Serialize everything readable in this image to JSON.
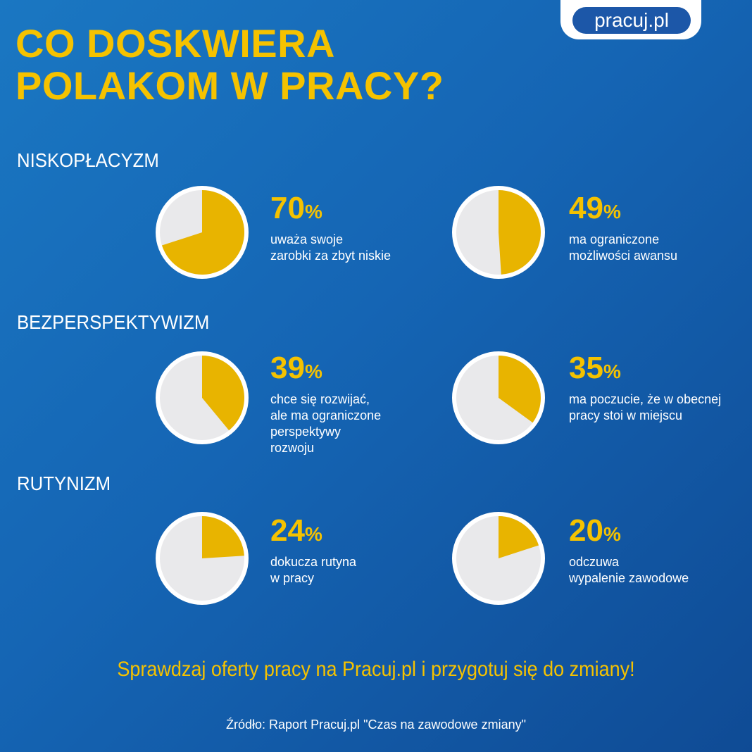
{
  "logo": {
    "text": "pracuj.pl"
  },
  "title": {
    "line1": "CO DOSKWIERA",
    "line2": "POLAKOM W PRACY?"
  },
  "sections": [
    {
      "label": "NISKOPŁACYZM"
    },
    {
      "label": "BEZPERSPEKTYWIZM"
    },
    {
      "label": "RUTYNIZM"
    }
  ],
  "stats": [
    {
      "value": "70",
      "sign": "%",
      "desc": "uważa swoje\nzarobki za zbyt niskie"
    },
    {
      "value": "49",
      "sign": "%",
      "desc": "ma ograniczone\nmożliwości awansu"
    },
    {
      "value": "39",
      "sign": "%",
      "desc": "chce się rozwijać,\nale ma ograniczone\nperspektywy\nrozwoju"
    },
    {
      "value": "35",
      "sign": "%",
      "desc": "ma poczucie, że w obecnej\npracy stoi w miejscu"
    },
    {
      "value": "24",
      "sign": "%",
      "desc": "dokucza rutyna\nw pracy"
    },
    {
      "value": "20",
      "sign": "%",
      "desc": "odczuwa\nwypalenie zawodowe"
    }
  ],
  "cta": "Sprawdzaj oferty pracy na Pracuj.pl i przygotuj się do zmiany!",
  "source": "Źródło: Raport Pracuj.pl \"Czas na zawodowe zmiany\"",
  "colors": {
    "accent": "#f5c200",
    "pie_fill": "#e8b400",
    "pie_rest": "#e9e9eb",
    "pie_border": "#ffffff"
  },
  "chart_data": {
    "type": "pie",
    "charts": [
      {
        "section": "NISKOPŁACYZM",
        "value": 70
      },
      {
        "section": "NISKOPŁACYZM",
        "value": 49
      },
      {
        "section": "BEZPERSPEKTYWIZM",
        "value": 39
      },
      {
        "section": "BEZPERSPEKTYWIZM",
        "value": 35
      },
      {
        "section": "RUTYNIZM",
        "value": 24
      },
      {
        "section": "RUTYNIZM",
        "value": 20
      }
    ]
  }
}
